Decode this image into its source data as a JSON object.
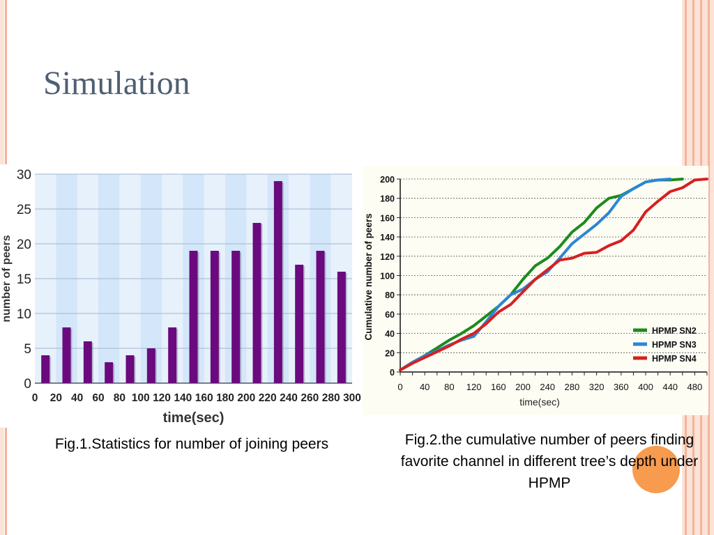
{
  "slide": {
    "title": "Simulation",
    "caption1": "Fig.1.Statistics for number of joining peers",
    "caption2": "Fig.2.the cumulative number of peers finding favorite channel in different tree’s depth under HPMP"
  },
  "chart_data": [
    {
      "type": "bar",
      "xlabel": "time(sec)",
      "ylabel": "number of peers",
      "ylim": [
        0,
        30
      ],
      "xlim": [
        0,
        300
      ],
      "yticks": [
        0,
        5,
        10,
        15,
        20,
        25,
        30
      ],
      "xticks": [
        0,
        20,
        40,
        60,
        80,
        100,
        120,
        140,
        160,
        180,
        200,
        220,
        240,
        260,
        280,
        300
      ],
      "grid": true,
      "bar_color": "#6a0a7e",
      "x": [
        10,
        30,
        50,
        70,
        90,
        110,
        130,
        150,
        170,
        190,
        210,
        230,
        250,
        270,
        290
      ],
      "values": [
        4,
        8,
        6,
        3,
        4,
        5,
        8,
        19,
        19,
        19,
        23,
        29,
        17,
        19,
        16
      ]
    },
    {
      "type": "line",
      "xlabel": "time(sec)",
      "ylabel": "Cumulative number of peers",
      "ylim": [
        0,
        200
      ],
      "xlim": [
        0,
        500
      ],
      "yticks": [
        0,
        20,
        40,
        60,
        80,
        100,
        120,
        140,
        160,
        180,
        200
      ],
      "xticks": [
        0,
        40,
        80,
        120,
        160,
        200,
        240,
        280,
        320,
        360,
        400,
        440,
        480
      ],
      "grid": true,
      "legend_position": "bottom-right",
      "series": [
        {
          "name": "HPMP SN2",
          "color": "#1e8a1e",
          "x": [
            0,
            20,
            40,
            60,
            80,
            100,
            120,
            140,
            160,
            180,
            200,
            220,
            240,
            260,
            280,
            300,
            320,
            340,
            360,
            380,
            400,
            420,
            440,
            460
          ],
          "y": [
            2,
            10,
            17,
            25,
            33,
            40,
            48,
            58,
            68,
            80,
            96,
            110,
            118,
            130,
            145,
            155,
            170,
            180,
            183,
            190,
            197,
            199,
            199,
            200
          ]
        },
        {
          "name": "HPMP SN3",
          "color": "#2b86d6",
          "x": [
            0,
            20,
            40,
            60,
            80,
            100,
            120,
            140,
            160,
            180,
            200,
            220,
            240,
            260,
            280,
            300,
            320,
            340,
            360,
            380,
            400,
            420,
            440
          ],
          "y": [
            2,
            10,
            17,
            22,
            28,
            33,
            37,
            52,
            68,
            80,
            86,
            96,
            104,
            118,
            133,
            143,
            153,
            165,
            182,
            190,
            197,
            199,
            200
          ]
        },
        {
          "name": "HPMP SN4",
          "color": "#d62020",
          "x": [
            0,
            20,
            40,
            60,
            80,
            100,
            120,
            140,
            160,
            180,
            200,
            220,
            240,
            260,
            280,
            300,
            320,
            340,
            360,
            380,
            400,
            420,
            440,
            460,
            480,
            500
          ],
          "y": [
            2,
            9,
            15,
            21,
            27,
            34,
            40,
            50,
            62,
            70,
            83,
            96,
            106,
            116,
            118,
            123,
            124,
            131,
            136,
            147,
            166,
            177,
            187,
            191,
            199,
            200
          ]
        }
      ]
    }
  ]
}
